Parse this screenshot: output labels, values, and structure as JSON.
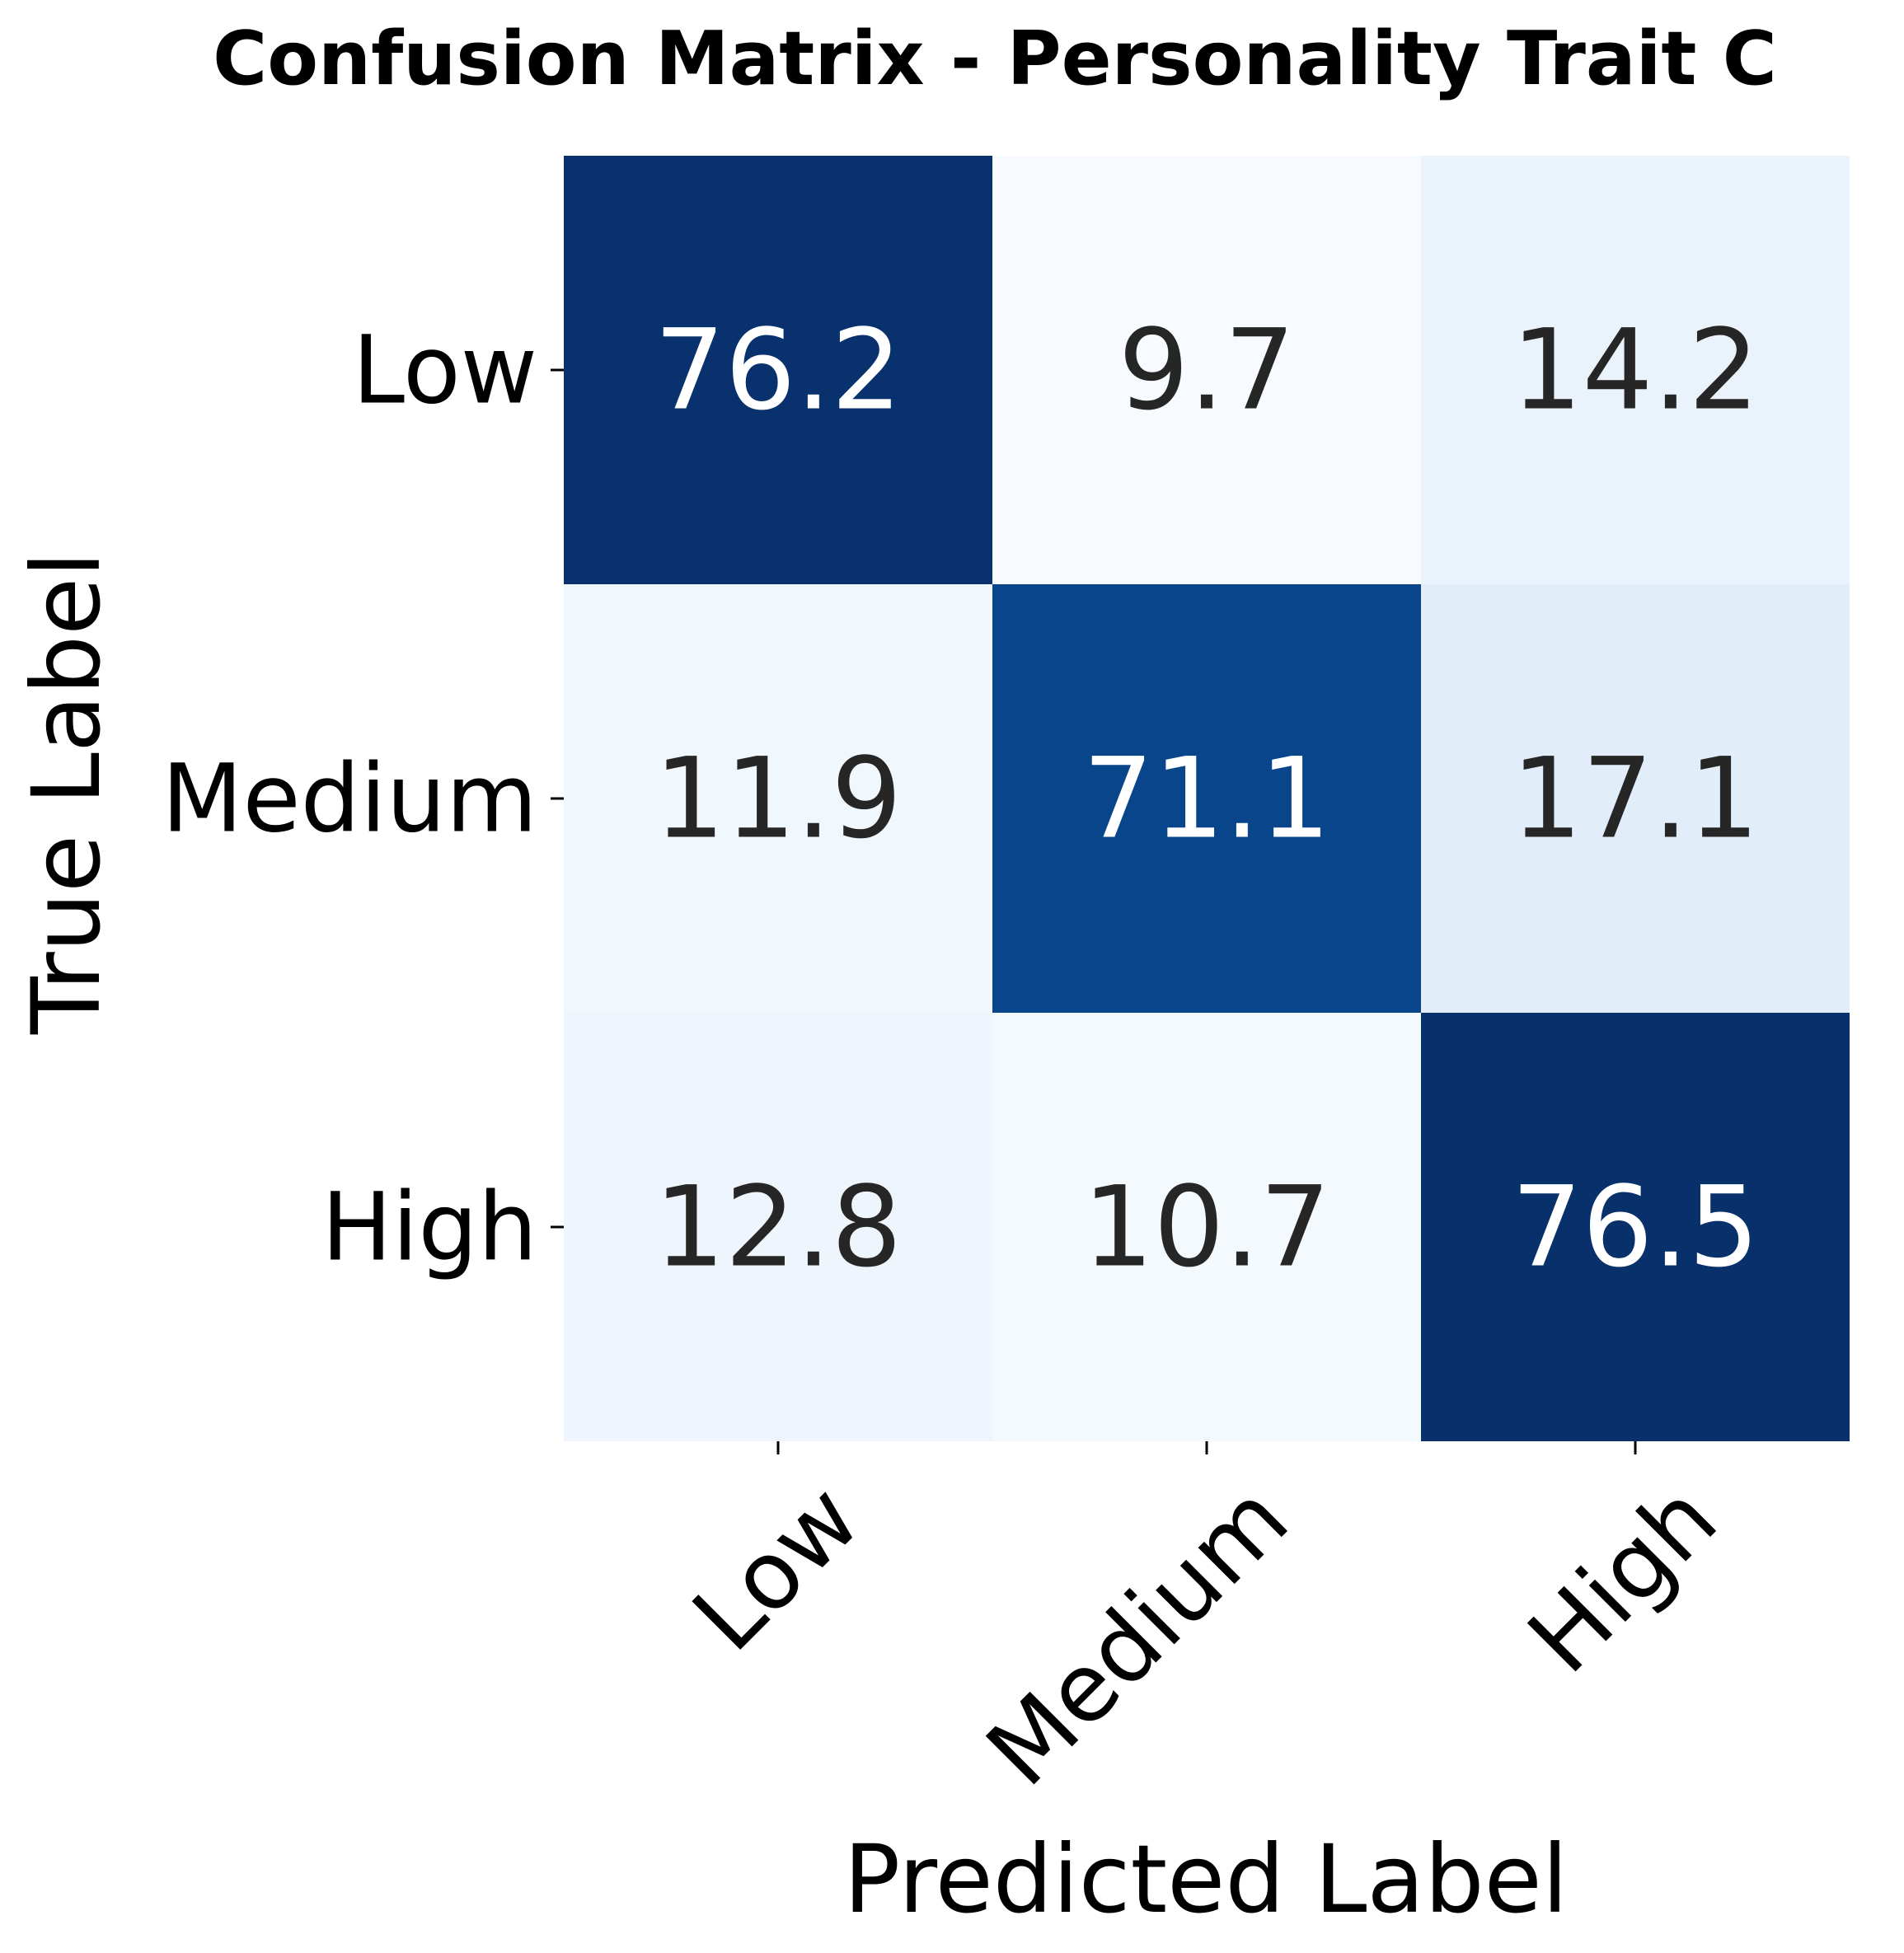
{
  "chart_data": {
    "type": "heatmap",
    "title": "Confusion Matrix - Personality Trait C",
    "xlabel": "Predicted Label",
    "ylabel": "True Label",
    "x_categories": [
      "Low",
      "Medium",
      "High"
    ],
    "y_categories": [
      "Low",
      "Medium",
      "High"
    ],
    "values": [
      [
        76.2,
        9.7,
        14.2
      ],
      [
        11.9,
        71.1,
        17.1
      ],
      [
        12.8,
        10.7,
        76.5
      ]
    ],
    "value_labels": [
      [
        "76.2",
        "9.7",
        "14.2"
      ],
      [
        "11.9",
        "71.1",
        "17.1"
      ],
      [
        "12.8",
        "10.7",
        "76.5"
      ]
    ],
    "colormap": "Blues",
    "colorbar": false,
    "grid": false
  }
}
